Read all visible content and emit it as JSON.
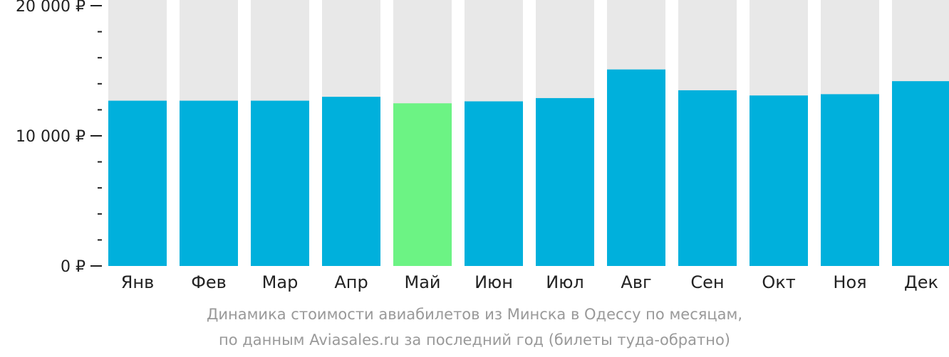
{
  "chart_data": {
    "type": "bar",
    "categories": [
      "Янв",
      "Фев",
      "Мар",
      "Апр",
      "Май",
      "Июн",
      "Июл",
      "Авг",
      "Сен",
      "Окт",
      "Ноя",
      "Дек"
    ],
    "values": [
      12700,
      12700,
      12700,
      13000,
      12500,
      12650,
      12900,
      15100,
      13500,
      13100,
      13200,
      14200
    ],
    "ylim": [
      0,
      20000
    ],
    "yticks": [
      {
        "value": 0,
        "label": "0 ₽"
      },
      {
        "value": 10000,
        "label": "10 000 ₽"
      },
      {
        "value": 20000,
        "label": "20 000 ₽"
      }
    ],
    "minor_tick_step": 2000,
    "highlight_category": "Май",
    "grid": false,
    "colors": {
      "bar": "#00b0dc",
      "highlight": "#6cf384",
      "track": "#e8e8e8",
      "axis": "#222222"
    }
  },
  "caption": {
    "line1": "Динамика стоимости авиабилетов из Минска в Одессу по месяцам,",
    "line2": "по данным Aviasales.ru за последний год (билеты туда-обратно)"
  }
}
